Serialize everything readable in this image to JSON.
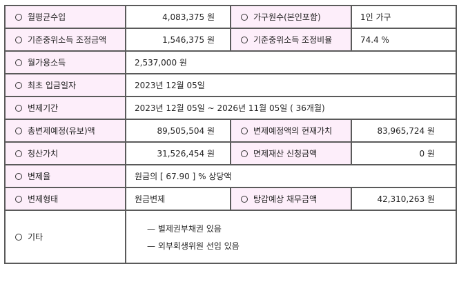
{
  "rows": [
    {
      "label": "월평균수입",
      "value": "4,083,375 원",
      "label2": "가구원수(본인포함)",
      "value2": "1인 가구"
    },
    {
      "label": "기준중위소득 조정금액",
      "value": "1,546,375 원",
      "label2": "기준중위소득 조정비율",
      "value2": "74.4 %"
    },
    {
      "label": "월가용소득",
      "value": "2,537,000 원"
    },
    {
      "label": "최초 입금일자",
      "value": "2023년 12월 05일"
    },
    {
      "label": "변제기간",
      "value": "2023년 12월 05일 ~ 2026년 11월 05일 ( 36개월)"
    },
    {
      "label": "총변제예정(유보)액",
      "value": "89,505,504 원",
      "label2": "변제예정액의 현재가치",
      "value2": "83,965,724 원"
    },
    {
      "label": "청산가치",
      "value": "31,526,454 원",
      "label2": "면제재산 신청금액",
      "value2": "0 원"
    },
    {
      "label": "변제율",
      "value": "원금의 [ 67.90 ] % 상당액"
    },
    {
      "label": "변제형태",
      "value": "원금변제",
      "label2": "탕감예상 채무금액",
      "value2": "42,310,263 원"
    },
    {
      "label": "기타",
      "lines": [
        "— 별제권부채권 있음",
        "— 외부회생위원 선임 있음"
      ]
    }
  ],
  "colors": {
    "label_bg": "#fdeefa",
    "border": "#5a5a5a"
  }
}
